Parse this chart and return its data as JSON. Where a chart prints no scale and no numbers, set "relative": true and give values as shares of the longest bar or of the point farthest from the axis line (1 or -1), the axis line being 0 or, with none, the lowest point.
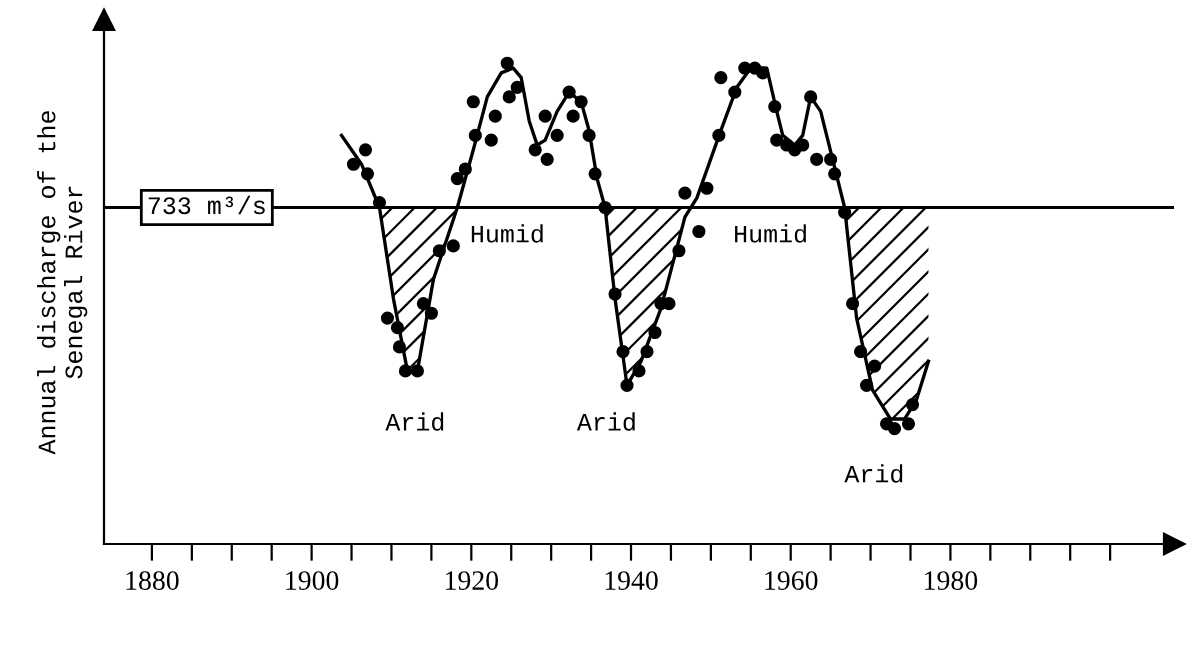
{
  "chart_data": {
    "type": "line",
    "relative": true,
    "ylabel": "Annual discharge of the\nSenegal River",
    "xlim": [
      1874,
      2008
    ],
    "xticks": [
      1880,
      {
        "value": 1885,
        "label": null
      },
      1900,
      {
        "value": 1890,
        "label": null
      },
      {
        "value": 1895,
        "label": null
      },
      {
        "value": 1905,
        "label": null
      },
      {
        "value": 1910,
        "label": null
      },
      {
        "value": 1915,
        "label": null
      },
      1920,
      {
        "value": 1925,
        "label": null
      },
      {
        "value": 1930,
        "label": null
      },
      {
        "value": 1935,
        "label": null
      },
      1940,
      {
        "value": 1945,
        "label": null
      },
      {
        "value": 1950,
        "label": null
      },
      {
        "value": 1955,
        "label": null
      },
      1960,
      {
        "value": 1965,
        "label": null
      },
      {
        "value": 1970,
        "label": null
      },
      {
        "value": 1975,
        "label": null
      },
      1980,
      {
        "value": 1985,
        "label": null
      },
      {
        "value": 1990,
        "label": null
      },
      {
        "value": 1995,
        "label": null
      },
      {
        "value": 2000,
        "label": null
      }
    ],
    "grid": false,
    "series": [
      {
        "type": "scatter",
        "marker": "circle",
        "color": "#000000",
        "x": [
          1905.25,
          1906.75,
          1907,
          1908.5,
          1909.5,
          1910.75,
          1911,
          1911.75,
          1913.25,
          1914,
          1915,
          1916,
          1917.75,
          1918.25,
          1919.25,
          1920.25,
          1920.5,
          1922.5,
          1923,
          1924.5,
          1924.75,
          1925.75,
          1928,
          1929.25,
          1929.5,
          1930.75,
          1932.25,
          1932.75,
          1933.75,
          1934.75,
          1935.5,
          1936.75,
          1938,
          1939,
          1939.5,
          1941,
          1942,
          1943,
          1943.75,
          1944.75,
          1946,
          1946.75,
          1948.5,
          1949.5,
          1951,
          1951.25,
          1953,
          1954.25,
          1955.5,
          1956.5,
          1958,
          1958.25,
          1959.5,
          1960.5,
          1961.5,
          1962.5,
          1963.25,
          1965,
          1965.5,
          1966.75,
          1967.75,
          1968.75,
          1969.5,
          1970.5,
          1972,
          1973,
          1974.75,
          1975.25
        ],
        "values": [
          0.79,
          0.82,
          0.77,
          0.71,
          0.47,
          0.45,
          0.41,
          0.36,
          0.36,
          0.5,
          0.48,
          0.61,
          0.62,
          0.76,
          0.78,
          0.92,
          0.85,
          0.84,
          0.89,
          1.0,
          0.93,
          0.95,
          0.82,
          0.89,
          0.8,
          0.85,
          0.94,
          0.89,
          0.92,
          0.85,
          0.77,
          0.7,
          0.52,
          0.4,
          0.33,
          0.36,
          0.4,
          0.44,
          0.5,
          0.5,
          0.61,
          0.73,
          0.65,
          0.74,
          0.85,
          0.97,
          0.94,
          0.99,
          0.99,
          0.98,
          0.91,
          0.84,
          0.83,
          0.82,
          0.83,
          0.93,
          0.8,
          0.8,
          0.77,
          0.69,
          0.5,
          0.4,
          0.33,
          0.37,
          0.25,
          0.24,
          0.25,
          0.29
        ]
      },
      {
        "type": "line",
        "color": "#000000",
        "line_style": "solid",
        "x": [
          1903.75,
          1906.25,
          1908.5,
          1910.25,
          1912,
          1913.25,
          1915.25,
          1918.25,
          1920.25,
          1922,
          1923.75,
          1925.25,
          1926.25,
          1927.25,
          1928.25,
          1929.25,
          1930.75,
          1932.25,
          1933.75,
          1934.75,
          1935.75,
          1936.75,
          1938,
          1939.5,
          1941.25,
          1943.75,
          1946.75,
          1948.25,
          1951.25,
          1953.25,
          1955,
          1957,
          1958.25,
          1959,
          1960.5,
          1961.5,
          1962.5,
          1963.75,
          1965.25,
          1966.75,
          1968.25,
          1970.25,
          1972.5,
          1974.25,
          1975.75,
          1977.25
        ],
        "values": [
          0.85,
          0.79,
          0.7,
          0.51,
          0.36,
          0.36,
          0.55,
          0.7,
          0.82,
          0.93,
          0.98,
          0.99,
          0.97,
          0.88,
          0.83,
          0.84,
          0.9,
          0.94,
          0.92,
          0.86,
          0.76,
          0.7,
          0.51,
          0.33,
          0.38,
          0.49,
          0.68,
          0.72,
          0.86,
          0.95,
          0.99,
          0.99,
          0.9,
          0.85,
          0.83,
          0.85,
          0.93,
          0.9,
          0.8,
          0.7,
          0.47,
          0.32,
          0.26,
          0.26,
          0.3,
          0.38
        ],
        "lower": [
          null,
          null,
          0.7,
          0.51,
          0.36,
          0.36,
          0.55,
          0.7,
          null,
          null,
          null,
          null,
          null,
          null,
          null,
          null,
          null,
          null,
          null,
          null,
          null,
          0.7,
          0.51,
          0.33,
          0.38,
          0.49,
          0.68,
          null,
          null,
          null,
          null,
          null,
          null,
          null,
          null,
          null,
          null,
          null,
          null,
          0.7,
          0.47,
          0.32,
          0.26,
          0.26,
          0.3,
          0.38
        ],
        "upper": [
          null,
          null,
          0.7,
          0.7,
          0.7,
          0.7,
          0.7,
          0.7,
          null,
          null,
          null,
          null,
          null,
          null,
          null,
          null,
          null,
          null,
          null,
          null,
          null,
          0.7,
          0.7,
          0.7,
          0.7,
          0.7,
          0.7,
          null,
          null,
          null,
          null,
          null,
          null,
          null,
          null,
          null,
          null,
          null,
          null,
          0.7,
          0.7,
          0.7,
          0.7,
          0.7,
          0.7,
          0.7
        ]
      }
    ],
    "ref_lines": [
      {
        "axis": "y",
        "value": 0.7,
        "label": "733 m³/s",
        "color": "#000000"
      }
    ],
    "annotations": [
      "Humid",
      "Humid",
      "Arid",
      "Arid",
      "Arid"
    ]
  }
}
